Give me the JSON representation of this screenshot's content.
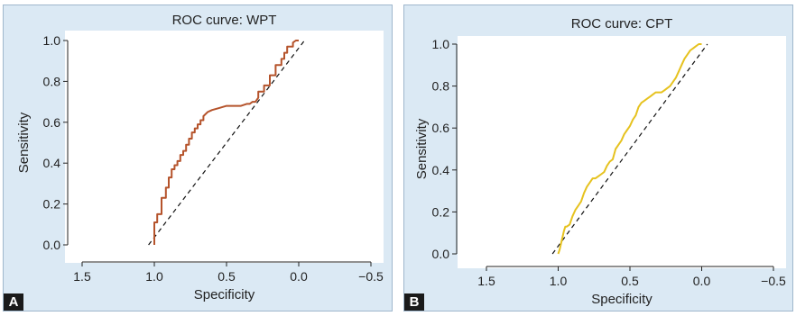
{
  "chart_data": [
    {
      "type": "line",
      "panel_label": "A",
      "title": "ROC curve: WPT",
      "xlabel": "Specificity",
      "ylabel": "Sensitivity",
      "xlim": [
        1.5,
        -0.5
      ],
      "ylim": [
        0.0,
        1.0
      ],
      "x_reversed": true,
      "x_ticks": [
        "1.5",
        "1.0",
        "0.5",
        "0.0",
        "−0.5"
      ],
      "x_tick_values": [
        1.5,
        1.0,
        0.5,
        0.0,
        -0.5
      ],
      "y_ticks": [
        "0.0",
        "0.2",
        "0.4",
        "0.6",
        "0.8",
        "1.0"
      ],
      "y_tick_values": [
        0.0,
        0.2,
        0.4,
        0.6,
        0.8,
        1.0
      ],
      "grid": false,
      "color": "#b5532b",
      "reference_line": {
        "x": [
          1.04,
          -0.04
        ],
        "y": [
          0.0,
          1.0
        ]
      },
      "series": [
        {
          "x": [
            1.0,
            1.0,
            0.98,
            0.98,
            0.95,
            0.95,
            0.92,
            0.92,
            0.9,
            0.9,
            0.88,
            0.88,
            0.86,
            0.86,
            0.84,
            0.84,
            0.82,
            0.82,
            0.8,
            0.8,
            0.78,
            0.78,
            0.76,
            0.76,
            0.74,
            0.74,
            0.72,
            0.72,
            0.7,
            0.7,
            0.68,
            0.68,
            0.66,
            0.66,
            0.63,
            0.6,
            0.55,
            0.5,
            0.45,
            0.4,
            0.36,
            0.34,
            0.32,
            0.3,
            0.28,
            0.28,
            0.24,
            0.24,
            0.2,
            0.2,
            0.16,
            0.16,
            0.12,
            0.12,
            0.1,
            0.1,
            0.08,
            0.08,
            0.04,
            0.04,
            0.02,
            0.0
          ],
          "y": [
            0.0,
            0.11,
            0.11,
            0.15,
            0.15,
            0.23,
            0.23,
            0.28,
            0.28,
            0.33,
            0.33,
            0.37,
            0.37,
            0.39,
            0.39,
            0.41,
            0.41,
            0.44,
            0.44,
            0.46,
            0.46,
            0.49,
            0.49,
            0.52,
            0.52,
            0.55,
            0.55,
            0.57,
            0.57,
            0.59,
            0.59,
            0.61,
            0.61,
            0.63,
            0.65,
            0.66,
            0.67,
            0.68,
            0.68,
            0.68,
            0.69,
            0.69,
            0.7,
            0.7,
            0.72,
            0.75,
            0.75,
            0.78,
            0.78,
            0.83,
            0.83,
            0.88,
            0.88,
            0.91,
            0.91,
            0.94,
            0.94,
            0.97,
            0.97,
            0.99,
            1.0,
            1.0
          ]
        }
      ]
    },
    {
      "type": "line",
      "panel_label": "B",
      "title": "ROC curve: CPT",
      "xlabel": "Specificity",
      "ylabel": "Sensitivity",
      "xlim": [
        1.5,
        -0.5
      ],
      "ylim": [
        0.0,
        1.0
      ],
      "x_reversed": true,
      "x_ticks": [
        "1.5",
        "1.0",
        "0.5",
        "0.0",
        "−0.5"
      ],
      "x_tick_values": [
        1.5,
        1.0,
        0.5,
        0.0,
        -0.5
      ],
      "y_ticks": [
        "0.0",
        "0.2",
        "0.4",
        "0.6",
        "0.8",
        "1.0"
      ],
      "y_tick_values": [
        0.0,
        0.2,
        0.4,
        0.6,
        0.8,
        1.0
      ],
      "grid": false,
      "color": "#e6c21f",
      "reference_line": {
        "x": [
          1.04,
          -0.04
        ],
        "y": [
          0.0,
          1.0
        ]
      },
      "series": [
        {
          "x": [
            1.0,
            0.99,
            0.98,
            0.97,
            0.96,
            0.95,
            0.94,
            0.92,
            0.9,
            0.88,
            0.86,
            0.84,
            0.82,
            0.8,
            0.78,
            0.76,
            0.74,
            0.72,
            0.7,
            0.68,
            0.66,
            0.64,
            0.62,
            0.6,
            0.58,
            0.56,
            0.54,
            0.52,
            0.5,
            0.48,
            0.46,
            0.44,
            0.42,
            0.4,
            0.38,
            0.36,
            0.34,
            0.32,
            0.3,
            0.28,
            0.26,
            0.24,
            0.22,
            0.2,
            0.18,
            0.16,
            0.14,
            0.12,
            0.1,
            0.08,
            0.06,
            0.04,
            0.02,
            0.0
          ],
          "y": [
            0.0,
            0.02,
            0.05,
            0.08,
            0.11,
            0.13,
            0.13,
            0.14,
            0.18,
            0.21,
            0.23,
            0.25,
            0.29,
            0.32,
            0.34,
            0.36,
            0.36,
            0.37,
            0.38,
            0.39,
            0.42,
            0.44,
            0.45,
            0.5,
            0.52,
            0.54,
            0.57,
            0.59,
            0.61,
            0.64,
            0.66,
            0.7,
            0.72,
            0.73,
            0.74,
            0.75,
            0.76,
            0.77,
            0.77,
            0.77,
            0.78,
            0.79,
            0.8,
            0.82,
            0.84,
            0.87,
            0.9,
            0.93,
            0.95,
            0.97,
            0.98,
            0.99,
            1.0,
            1.0
          ]
        }
      ]
    }
  ]
}
